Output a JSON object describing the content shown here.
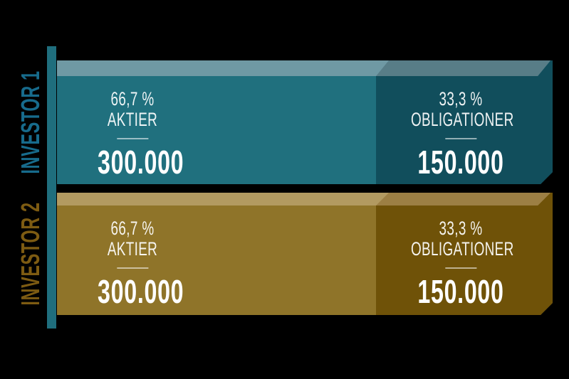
{
  "background_color": "#000000",
  "axis_color": "#1f6e7d",
  "text_color": "#ffffff",
  "investors": [
    {
      "label": "INVESTOR 1",
      "label_color": "#176b8c",
      "segments": [
        {
          "percent": "66,7 %",
          "name": "AKTIER",
          "amount": "300.000",
          "body_color": "#20707e",
          "strip_color": "#6f99a4"
        },
        {
          "percent": "33,3 %",
          "name": "OBLIGATIONER",
          "amount": "150.000",
          "body_color": "#114e5c",
          "strip_color": "#587d87"
        }
      ]
    },
    {
      "label": "INVESTOR 2",
      "label_color": "#7d5b12",
      "segments": [
        {
          "percent": "66,7 %",
          "name": "AKTIER",
          "amount": "300.000",
          "body_color": "#8f7429",
          "strip_color": "#b29a61"
        },
        {
          "percent": "33,3 %",
          "name": "OBLIGATIONER",
          "amount": "150.000",
          "body_color": "#6f5208",
          "strip_color": "#9c7f44"
        }
      ]
    }
  ],
  "chart_data": {
    "type": "bar",
    "orientation": "horizontal",
    "stacked": true,
    "categories": [
      "INVESTOR 1",
      "INVESTOR 2"
    ],
    "series": [
      {
        "name": "AKTIER",
        "values": [
          300000,
          300000
        ],
        "percents": [
          66.7,
          66.7
        ]
      },
      {
        "name": "OBLIGATIONER",
        "values": [
          150000,
          150000
        ],
        "percents": [
          33.3,
          33.3
        ]
      }
    ],
    "data_labels": [
      [
        "66,7 % AKTIER 300.000",
        "33,3 % OBLIGATIONER 150.000"
      ],
      [
        "66,7 % AKTIER 300.000",
        "33,3 % OBLIGATIONER 150.000"
      ]
    ],
    "title": "",
    "xlabel": "",
    "ylabel": "",
    "legend": "none",
    "grid": false,
    "colors": {
      "investor1": [
        "#20707e",
        "#114e5c"
      ],
      "investor2": [
        "#8f7429",
        "#6f5208"
      ]
    }
  }
}
